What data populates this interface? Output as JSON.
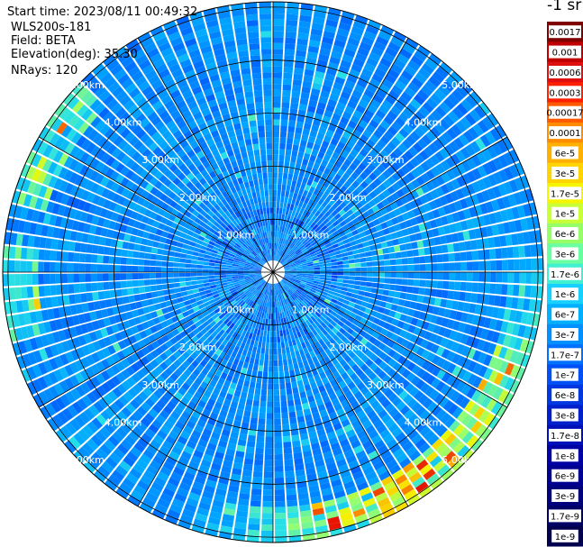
{
  "header": {
    "start_time": "Start time: 2023/08/11 00:49:32",
    "instrument": "WLS200s-181",
    "field": "Field: BETA",
    "elevation": "Elevation(deg): 35.30",
    "nrays": "NRays: 120"
  },
  "colorbar": {
    "title": "-1 sr",
    "ticks": [
      "0.0017",
      "0.001",
      "0.0006",
      "0.0003",
      "0.00017",
      "0.0001",
      "6e-5",
      "3e-5",
      "1.7e-5",
      "1e-5",
      "6e-6",
      "3e-6",
      "1.7e-6",
      "1e-6",
      "6e-7",
      "3e-7",
      "1.7e-7",
      "1e-7",
      "6e-8",
      "3e-8",
      "1.7e-8",
      "1e-8",
      "6e-9",
      "3e-9",
      "1.7e-9",
      "1e-9"
    ],
    "colors": [
      "#7f0000",
      "#c00000",
      "#e01010",
      "#ff2000",
      "#ff5a00",
      "#ff8c00",
      "#ffb000",
      "#ffd400",
      "#f5f500",
      "#c8ff36",
      "#96ff68",
      "#6affa0",
      "#40f0d0",
      "#18d0ff",
      "#00b0ff",
      "#0090ff",
      "#0070ff",
      "#0050f5",
      "#0038e0",
      "#0020cc",
      "#0010b8",
      "#0000a4",
      "#000090",
      "#00007c",
      "#000066",
      "#00004e"
    ]
  },
  "chart_data": {
    "type": "heatmap",
    "projection": "polar-ppi",
    "field": "BETA",
    "elevation_deg": 35.3,
    "n_rays": 120,
    "range_rings_km": [
      1,
      2,
      3,
      4,
      5
    ],
    "ring_labels": [
      "1.00km",
      "2.00km",
      "3.00km",
      "4.00km",
      "5.00km"
    ],
    "max_range_km": 5.1,
    "color_scale": "log",
    "color_range": [
      1e-09,
      0.0017
    ]
  }
}
